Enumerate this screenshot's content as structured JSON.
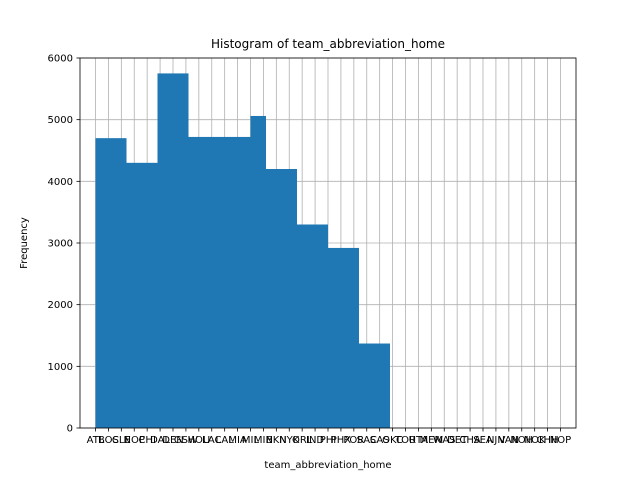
{
  "chart_data": {
    "type": "bar",
    "title": "Histogram of team_abbreviation_home",
    "xlabel": "team_abbreviation_home",
    "ylabel": "Frequency",
    "ylim": [
      0,
      6000
    ],
    "yticks": [
      0,
      1000,
      2000,
      3000,
      4000,
      5000,
      6000
    ],
    "grid": true,
    "bar_color": "#1f77b4",
    "categories": [
      "ATL",
      "BOS",
      "CLE",
      "NOP",
      "CHI",
      "DAL",
      "DEN",
      "GSW",
      "HOU",
      "LAC",
      "LAL",
      "MIA",
      "MIL",
      "MIN",
      "BKN",
      "NYK",
      "ORL",
      "IND",
      "PHI",
      "PHX",
      "POR",
      "SAC",
      "SAS",
      "OKC",
      "TOR",
      "UTA",
      "MEM",
      "WAS",
      "DET",
      "CHA",
      "SEA",
      "NJN",
      "VAN",
      "NOH",
      "NOK",
      "CHH",
      "NOP"
    ],
    "bins": [
      {
        "start": 0.0,
        "end": 1.2,
        "value": 4700
      },
      {
        "start": 1.2,
        "end": 2.4,
        "value": 4700
      },
      {
        "start": 2.4,
        "end": 3.6,
        "value": 4300
      },
      {
        "start": 3.6,
        "end": 4.8,
        "value": 4300
      },
      {
        "start": 4.8,
        "end": 6.0,
        "value": 5750
      },
      {
        "start": 6.0,
        "end": 7.2,
        "value": 5750
      },
      {
        "start": 7.2,
        "end": 8.4,
        "value": 4720
      },
      {
        "start": 8.4,
        "end": 9.6,
        "value": 4720
      },
      {
        "start": 9.6,
        "end": 10.8,
        "value": 4720
      },
      {
        "start": 10.8,
        "end": 12.0,
        "value": 4720
      },
      {
        "start": 12.0,
        "end": 13.2,
        "value": 5060
      },
      {
        "start": 13.2,
        "end": 14.4,
        "value": 4200
      },
      {
        "start": 14.4,
        "end": 15.6,
        "value": 4200
      },
      {
        "start": 15.6,
        "end": 16.8,
        "value": 3300
      },
      {
        "start": 16.8,
        "end": 18.0,
        "value": 3300
      },
      {
        "start": 18.0,
        "end": 19.2,
        "value": 2920
      },
      {
        "start": 19.2,
        "end": 20.4,
        "value": 2920
      },
      {
        "start": 20.4,
        "end": 21.6,
        "value": 1370
      },
      {
        "start": 21.6,
        "end": 22.8,
        "value": 1370
      }
    ]
  }
}
